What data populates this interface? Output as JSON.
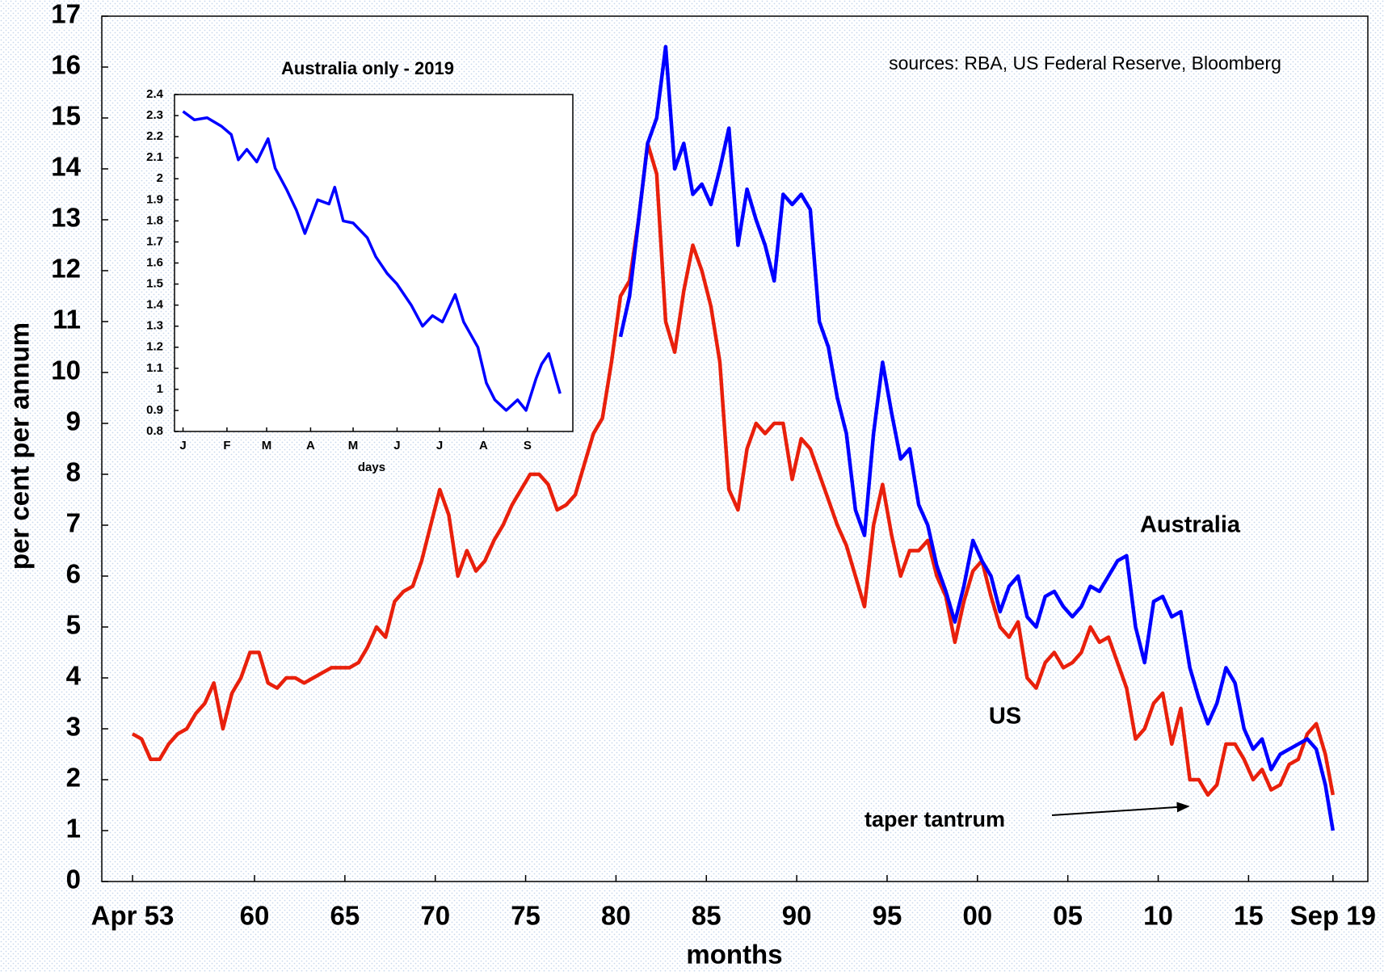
{
  "chart_data": [
    {
      "type": "line",
      "xlabel": "months",
      "ylabel": "per cent per annum",
      "annotations": [
        "sources: RBA, US Federal Reserve, Bloomberg",
        "taper tantrum"
      ],
      "xlim": [
        1951.55,
        2021.6
      ],
      "ylim": [
        0,
        17
      ],
      "yticks": [
        0,
        1,
        2,
        3,
        4,
        5,
        6,
        7,
        8,
        9,
        10,
        11,
        12,
        13,
        14,
        15,
        16,
        17
      ],
      "xticks": [
        {
          "value": 1953.25,
          "label": "Apr 53"
        },
        {
          "value": 1960,
          "label": "60"
        },
        {
          "value": 1965,
          "label": "65"
        },
        {
          "value": 1970,
          "label": "70"
        },
        {
          "value": 1975,
          "label": "75"
        },
        {
          "value": 1980,
          "label": "80"
        },
        {
          "value": 1985,
          "label": "85"
        },
        {
          "value": 1990,
          "label": "90"
        },
        {
          "value": 1995,
          "label": "95"
        },
        {
          "value": 2000,
          "label": "00"
        },
        {
          "value": 2005,
          "label": "05"
        },
        {
          "value": 2010,
          "label": "10"
        },
        {
          "value": 2015,
          "label": "15"
        },
        {
          "value": 2019.67,
          "label": "Sep 19"
        }
      ],
      "x": [
        1953.25,
        1953.75,
        1954.25,
        1954.75,
        1955.25,
        1955.75,
        1956.25,
        1956.75,
        1957.25,
        1957.75,
        1958.25,
        1958.75,
        1959.25,
        1959.75,
        1960.25,
        1960.75,
        1961.25,
        1961.75,
        1962.25,
        1962.75,
        1963.25,
        1963.75,
        1964.25,
        1964.75,
        1965.25,
        1965.75,
        1966.25,
        1966.75,
        1967.25,
        1967.75,
        1968.25,
        1968.75,
        1969.25,
        1969.75,
        1970.25,
        1970.75,
        1971.25,
        1971.75,
        1972.25,
        1972.75,
        1973.25,
        1973.75,
        1974.25,
        1974.75,
        1975.25,
        1975.75,
        1976.25,
        1976.75,
        1977.25,
        1977.75,
        1978.25,
        1978.75,
        1979.25,
        1979.75,
        1980.25,
        1980.75,
        1981.25,
        1981.75,
        1982.25,
        1982.75,
        1983.25,
        1983.75,
        1984.25,
        1984.75,
        1985.25,
        1985.75,
        1986.25,
        1986.75,
        1987.25,
        1987.75,
        1988.25,
        1988.75,
        1989.25,
        1989.75,
        1990.25,
        1990.75,
        1991.25,
        1991.75,
        1992.25,
        1992.75,
        1993.25,
        1993.75,
        1994.25,
        1994.75,
        1995.25,
        1995.75,
        1996.25,
        1996.75,
        1997.25,
        1997.75,
        1998.25,
        1998.75,
        1999.25,
        1999.75,
        2000.25,
        2000.75,
        2001.25,
        2001.75,
        2002.25,
        2002.75,
        2003.25,
        2003.75,
        2004.25,
        2004.75,
        2005.25,
        2005.75,
        2006.25,
        2006.75,
        2007.25,
        2007.75,
        2008.25,
        2008.75,
        2009.25,
        2009.75,
        2010.25,
        2010.75,
        2011.25,
        2011.75,
        2012.25,
        2012.75,
        2013.25,
        2013.75,
        2014.25,
        2014.75,
        2015.25,
        2015.75,
        2016.25,
        2016.75,
        2017.25,
        2017.75,
        2018.25,
        2018.75,
        2019.25,
        2019.67
      ],
      "series": [
        {
          "name": "US",
          "color": "#e8200c",
          "values": [
            2.9,
            2.8,
            2.4,
            2.4,
            2.7,
            2.9,
            3.0,
            3.3,
            3.5,
            3.9,
            3.0,
            3.7,
            4.0,
            4.5,
            4.5,
            3.9,
            3.8,
            4.0,
            4.0,
            3.9,
            4.0,
            4.1,
            4.2,
            4.2,
            4.2,
            4.3,
            4.6,
            5.0,
            4.8,
            5.5,
            5.7,
            5.8,
            6.3,
            7.0,
            7.7,
            7.2,
            6.0,
            6.5,
            6.1,
            6.3,
            6.7,
            7.0,
            7.4,
            7.7,
            8.0,
            8.0,
            7.8,
            7.3,
            7.4,
            7.6,
            8.2,
            8.8,
            9.1,
            10.2,
            11.5,
            11.8,
            13.0,
            14.5,
            13.9,
            11.0,
            10.4,
            11.6,
            12.5,
            12.0,
            11.3,
            10.2,
            7.7,
            7.3,
            8.5,
            9.0,
            8.8,
            9.0,
            9.0,
            7.9,
            8.7,
            8.5,
            8.0,
            7.5,
            7.0,
            6.6,
            6.0,
            5.4,
            7.0,
            7.8,
            6.8,
            6.0,
            6.5,
            6.5,
            6.7,
            6.0,
            5.6,
            4.7,
            5.5,
            6.1,
            6.3,
            5.6,
            5.0,
            4.8,
            5.1,
            4.0,
            3.8,
            4.3,
            4.5,
            4.2,
            4.3,
            4.5,
            5.0,
            4.7,
            4.8,
            4.3,
            3.8,
            2.8,
            3.0,
            3.5,
            3.7,
            2.7,
            3.4,
            2.0,
            2.0,
            1.7,
            1.9,
            2.7,
            2.7,
            2.4,
            2.0,
            2.2,
            1.8,
            1.9,
            2.3,
            2.4,
            2.9,
            3.1,
            2.5,
            1.7
          ]
        },
        {
          "name": "Australia",
          "color": "#0000ff",
          "values": [
            null,
            null,
            null,
            null,
            null,
            null,
            null,
            null,
            null,
            null,
            null,
            null,
            null,
            null,
            null,
            null,
            null,
            null,
            null,
            null,
            null,
            null,
            null,
            null,
            null,
            null,
            null,
            null,
            null,
            null,
            null,
            null,
            null,
            null,
            null,
            null,
            null,
            null,
            null,
            null,
            null,
            null,
            null,
            null,
            null,
            null,
            null,
            null,
            null,
            null,
            null,
            null,
            null,
            null,
            10.7,
            11.5,
            13.0,
            14.5,
            15.0,
            16.4,
            14.0,
            14.5,
            13.5,
            13.7,
            13.3,
            14.0,
            14.8,
            12.5,
            13.6,
            13.0,
            12.5,
            11.8,
            13.5,
            13.3,
            13.5,
            13.2,
            11.0,
            10.5,
            9.5,
            8.8,
            7.3,
            6.8,
            8.8,
            10.2,
            9.2,
            8.3,
            8.5,
            7.4,
            7.0,
            6.2,
            5.7,
            5.1,
            5.8,
            6.7,
            6.3,
            6.0,
            5.3,
            5.8,
            6.0,
            5.2,
            5.0,
            5.6,
            5.7,
            5.4,
            5.2,
            5.4,
            5.8,
            5.7,
            6.0,
            6.3,
            6.4,
            5.0,
            4.3,
            5.5,
            5.6,
            5.2,
            5.3,
            4.2,
            3.6,
            3.1,
            3.5,
            4.2,
            3.9,
            3.0,
            2.6,
            2.8,
            2.2,
            2.5,
            2.6,
            2.7,
            2.8,
            2.6,
            1.9,
            1.0
          ]
        }
      ]
    },
    {
      "type": "line",
      "title": "Australia only - 2019",
      "xlabel": "days",
      "xlim": [
        -5,
        276
      ],
      "ylim": [
        0.8,
        2.4
      ],
      "yticks": [
        0.8,
        0.9,
        1,
        1.1,
        1.2,
        1.3,
        1.4,
        1.5,
        1.6,
        1.7,
        1.8,
        1.9,
        2,
        2.1,
        2.2,
        2.3,
        2.4
      ],
      "xticks": [
        {
          "value": 1,
          "label": "J"
        },
        {
          "value": 32,
          "label": "F"
        },
        {
          "value": 60,
          "label": "M"
        },
        {
          "value": 91,
          "label": "A"
        },
        {
          "value": 121,
          "label": "M"
        },
        {
          "value": 152,
          "label": "J"
        },
        {
          "value": 182,
          "label": "J"
        },
        {
          "value": 213,
          "label": "A"
        },
        {
          "value": 244,
          "label": "S"
        }
      ],
      "x": [
        1,
        9,
        18,
        28,
        35,
        40,
        46,
        53,
        61,
        66,
        74,
        81,
        87,
        96,
        104,
        108,
        114,
        121,
        131,
        137,
        145,
        152,
        162,
        170,
        177,
        184,
        193,
        199,
        209,
        215,
        221,
        229,
        237,
        243,
        250,
        254,
        259,
        264,
        267
      ],
      "series": [
        {
          "color": "#0000ff",
          "values": [
            2.32,
            2.28,
            2.29,
            2.25,
            2.21,
            2.09,
            2.14,
            2.08,
            2.19,
            2.05,
            1.95,
            1.85,
            1.74,
            1.9,
            1.88,
            1.96,
            1.8,
            1.79,
            1.72,
            1.63,
            1.55,
            1.5,
            1.4,
            1.3,
            1.35,
            1.32,
            1.45,
            1.32,
            1.2,
            1.03,
            0.95,
            0.9,
            0.95,
            0.9,
            1.05,
            1.12,
            1.17,
            1.05,
            0.98
          ]
        }
      ]
    }
  ]
}
